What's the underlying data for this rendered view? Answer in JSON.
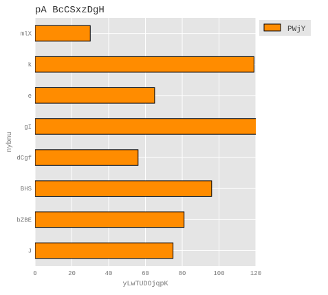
{
  "chart_data": {
    "type": "bar",
    "orientation": "horizontal",
    "title": "pA BcCSxzDgH",
    "xlabel": "yLwTUDOjqpK",
    "ylabel": "nybnu",
    "categories": [
      "mlX",
      "k",
      "e",
      "gI",
      "dCgf",
      "BHS",
      "bZBE",
      "J"
    ],
    "series": [
      {
        "name": "PWjY",
        "values": [
          30,
          119,
          65,
          121,
          56,
          96,
          81,
          75
        ]
      }
    ],
    "xlim": [
      0,
      120
    ],
    "xticks": [
      "0",
      "20",
      "40",
      "60",
      "80",
      "100",
      "120"
    ],
    "grid": true,
    "legend_position": "top-right",
    "colors": {
      "bar": "#ff8c00",
      "bar_edge": "#000000",
      "background": "#e5e5e5",
      "grid": "#ffffff"
    }
  }
}
